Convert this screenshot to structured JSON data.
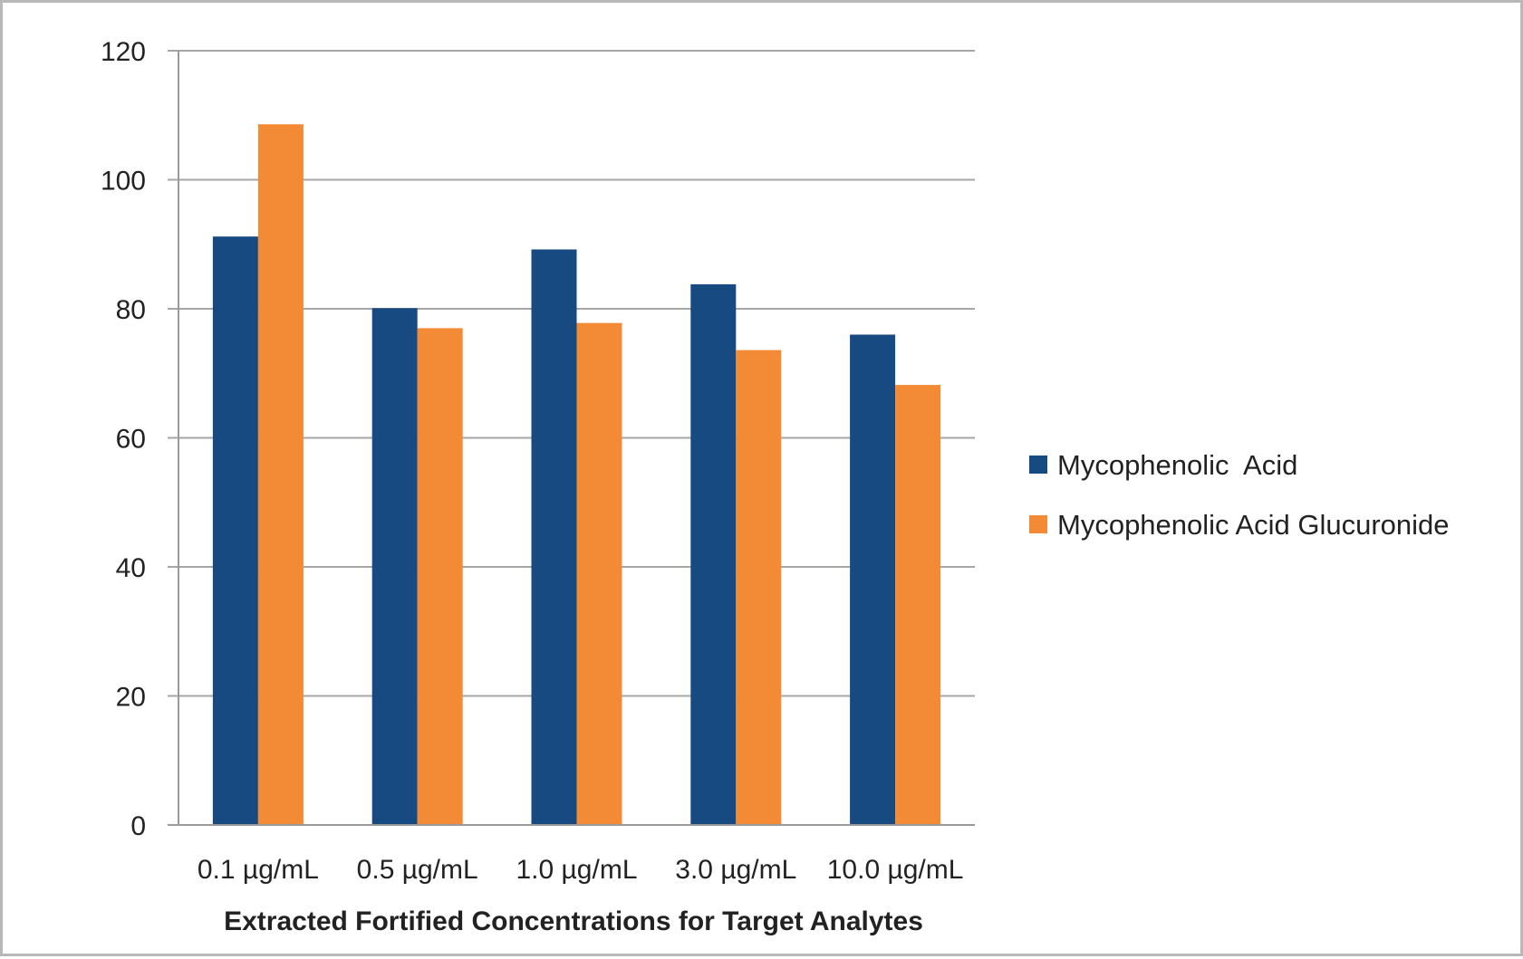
{
  "chart_data": {
    "type": "bar",
    "categories": [
      "0.1 µg/mL",
      "0.5 µg/mL",
      "1.0 µg/mL",
      "3.0 µg/mL",
      "10.0 µg/mL"
    ],
    "series": [
      {
        "name": "Mycophenolic  Acid",
        "color": "#174A80",
        "values": [
          91.2,
          80.1,
          89.2,
          83.8,
          76.0
        ]
      },
      {
        "name": "Mycophenolic Acid Glucuronide",
        "color": "#F28A36",
        "values": [
          108.6,
          77.0,
          77.8,
          73.6,
          68.2
        ]
      }
    ],
    "title": "",
    "xlabel": "Extracted Fortified Concentrations for Target  Analytes",
    "ylabel": "",
    "ylim": [
      0,
      120
    ],
    "yticks": [
      0,
      20,
      40,
      60,
      80,
      100,
      120
    ],
    "grid": true,
    "legend_position": "right",
    "gridline_color": "#A6A6A6",
    "axis_color": "#9A9A9A",
    "frame_color": "#B8B8B8"
  }
}
